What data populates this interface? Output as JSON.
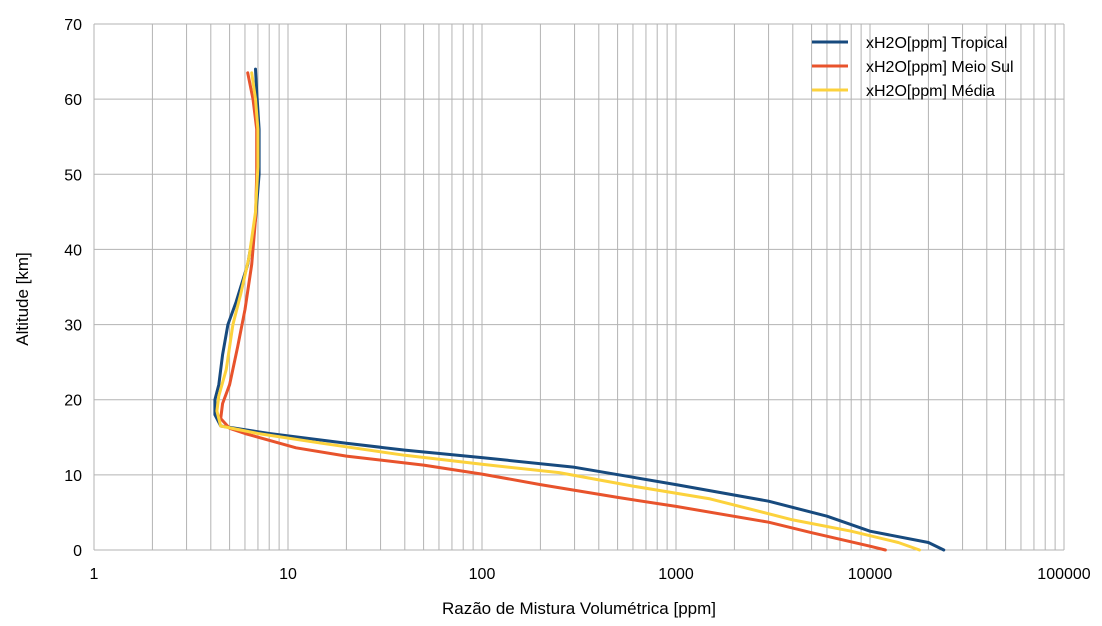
{
  "chart_data": {
    "type": "line",
    "xlabel": "Razão de Mistura Volumétrica [ppm]",
    "ylabel": "Altitude [km]",
    "x_scale": "log",
    "xlim": [
      1,
      100000
    ],
    "ylim": [
      0,
      70
    ],
    "x_ticks": [
      "1",
      "10",
      "100",
      "1000",
      "10000",
      "100000"
    ],
    "y_ticks": [
      "0",
      "10",
      "20",
      "30",
      "40",
      "50",
      "60",
      "70"
    ],
    "grid": true,
    "legend_position": "top-right",
    "series": [
      {
        "name": "xH2O[ppm] Tropical",
        "color": "#174a7e",
        "points": [
          [
            24000,
            0
          ],
          [
            20000,
            1
          ],
          [
            10000,
            2.5
          ],
          [
            6000,
            4.5
          ],
          [
            3000,
            6.5
          ],
          [
            1000,
            8.7
          ],
          [
            300,
            11
          ],
          [
            100,
            12.3
          ],
          [
            40,
            13.3
          ],
          [
            20,
            14.2
          ],
          [
            8,
            15.5
          ],
          [
            4.5,
            16.5
          ],
          [
            4.2,
            18
          ],
          [
            4.2,
            20
          ],
          [
            4.4,
            22
          ],
          [
            4.6,
            26
          ],
          [
            4.9,
            30
          ],
          [
            5.4,
            33
          ],
          [
            6.2,
            38
          ],
          [
            6.8,
            44
          ],
          [
            7.1,
            50
          ],
          [
            7.1,
            56
          ],
          [
            6.9,
            61
          ],
          [
            6.8,
            64
          ]
        ]
      },
      {
        "name": "xH2O[ppm] Meio Sul",
        "color": "#e8532c",
        "points": [
          [
            12000,
            0
          ],
          [
            10000,
            0.5
          ],
          [
            5000,
            2.3
          ],
          [
            3000,
            3.7
          ],
          [
            1000,
            5.8
          ],
          [
            500,
            7
          ],
          [
            200,
            8.7
          ],
          [
            100,
            10.1
          ],
          [
            50,
            11.3
          ],
          [
            20,
            12.5
          ],
          [
            11,
            13.6
          ],
          [
            6,
            15.5
          ],
          [
            5,
            16.2
          ],
          [
            4.5,
            17.5
          ],
          [
            4.6,
            19.5
          ],
          [
            5,
            22
          ],
          [
            5.5,
            27
          ],
          [
            6,
            32
          ],
          [
            6.5,
            38
          ],
          [
            6.8,
            44
          ],
          [
            6.9,
            50
          ],
          [
            6.9,
            56
          ],
          [
            6.6,
            60
          ],
          [
            6.2,
            63.5
          ]
        ]
      },
      {
        "name": "xH2O[ppm] Média",
        "color": "#fcd23c",
        "points": [
          [
            18000,
            0
          ],
          [
            14000,
            1
          ],
          [
            8000,
            2.5
          ],
          [
            4000,
            4
          ],
          [
            1500,
            6.8
          ],
          [
            600,
            8.5
          ],
          [
            250,
            10.3
          ],
          [
            100,
            11.4
          ],
          [
            40,
            12.6
          ],
          [
            15,
            14.2
          ],
          [
            7,
            15.5
          ],
          [
            4.5,
            16.5
          ],
          [
            4.3,
            18.5
          ],
          [
            4.4,
            20.5
          ],
          [
            4.8,
            24
          ],
          [
            5.2,
            30
          ],
          [
            5.7,
            34
          ],
          [
            6.3,
            39
          ],
          [
            6.8,
            45
          ],
          [
            7,
            51
          ],
          [
            7,
            56
          ],
          [
            6.8,
            60
          ],
          [
            6.5,
            63.5
          ]
        ]
      }
    ]
  }
}
